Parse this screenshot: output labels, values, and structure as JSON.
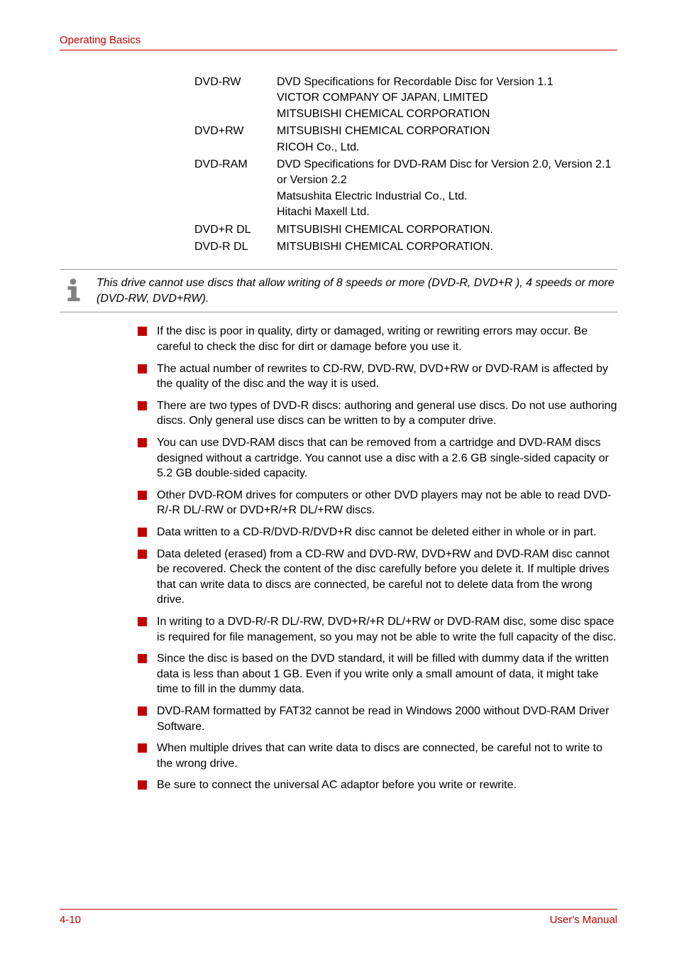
{
  "colors": {
    "accent": "#c00000",
    "text": "#000000",
    "background": "#ffffff",
    "rule": "#999999"
  },
  "typography": {
    "body_fontsize": 16,
    "header_fontsize": 15
  },
  "header": {
    "title": "Operating Basics"
  },
  "specs": [
    {
      "label": "DVD-RW",
      "value": "DVD Specifications for Recordable Disc for Version 1.1\nVICTOR COMPANY OF JAPAN, LIMITED\nMITSUBISHI CHEMICAL CORPORATION"
    },
    {
      "label": "DVD+RW",
      "value": "MITSUBISHI CHEMICAL CORPORATION\nRICOH Co., Ltd."
    },
    {
      "label": "DVD-RAM",
      "value": "DVD Specifications for DVD-RAM Disc for Version 2.0, Version 2.1 or Version 2.2\nMatsushita Electric Industrial Co., Ltd.\nHitachi Maxell Ltd."
    },
    {
      "label": "DVD+R DL",
      "value": "MITSUBISHI CHEMICAL CORPORATION."
    },
    {
      "label": "DVD-R DL",
      "value": "MITSUBISHI CHEMICAL CORPORATION."
    }
  ],
  "note": "This drive cannot use discs that allow writing of 8 speeds or more (DVD-R, DVD+R ), 4 speeds or more (DVD-RW, DVD+RW).",
  "bullets": [
    "If the disc is poor in quality, dirty or damaged, writing or rewriting errors may occur. Be careful to check the disc for dirt or damage before you use it.",
    "The actual number of rewrites to CD-RW, DVD-RW, DVD+RW or DVD-RAM is affected by the quality of the disc and the way it is used.",
    "There are two types of DVD-R discs: authoring and general use discs. Do not use authoring discs. Only general use discs can be written to by a computer drive.",
    "You can use DVD-RAM discs that can be removed from a cartridge and DVD-RAM discs designed without a cartridge. You cannot use a disc with a 2.6 GB single-sided capacity or 5.2 GB double-sided capacity.",
    "Other DVD-ROM drives for computers or other DVD players may not be able to read DVD-R/-R DL/-RW or DVD+R/+R DL/+RW discs.",
    "Data written to a CD-R/DVD-R/DVD+R disc cannot be deleted either in whole or in part.",
    "Data deleted (erased) from a CD-RW and DVD-RW, DVD+RW and DVD-RAM disc cannot be recovered. Check the content of the disc carefully before you delete it. If multiple drives that can write data to discs are connected, be careful not to delete data from the wrong drive.",
    "In writing to a DVD-R/-R DL/-RW, DVD+R/+R DL/+RW or DVD-RAM disc, some disc space is required for file management, so you may not be able to write the full capacity of the disc.",
    "Since the disc is based on the DVD standard, it will be filled with dummy data if the written data is less than about 1 GB. Even if you write only a small amount of data, it might take time to fill in the dummy data.",
    "DVD-RAM formatted by FAT32 cannot be read in Windows 2000 without DVD-RAM Driver Software.",
    "When multiple drives that can write data to discs are connected, be careful not to write to the wrong drive.",
    "Be sure to connect the universal AC adaptor before you write or rewrite."
  ],
  "footer": {
    "left": "4-10",
    "right": "User's Manual"
  }
}
